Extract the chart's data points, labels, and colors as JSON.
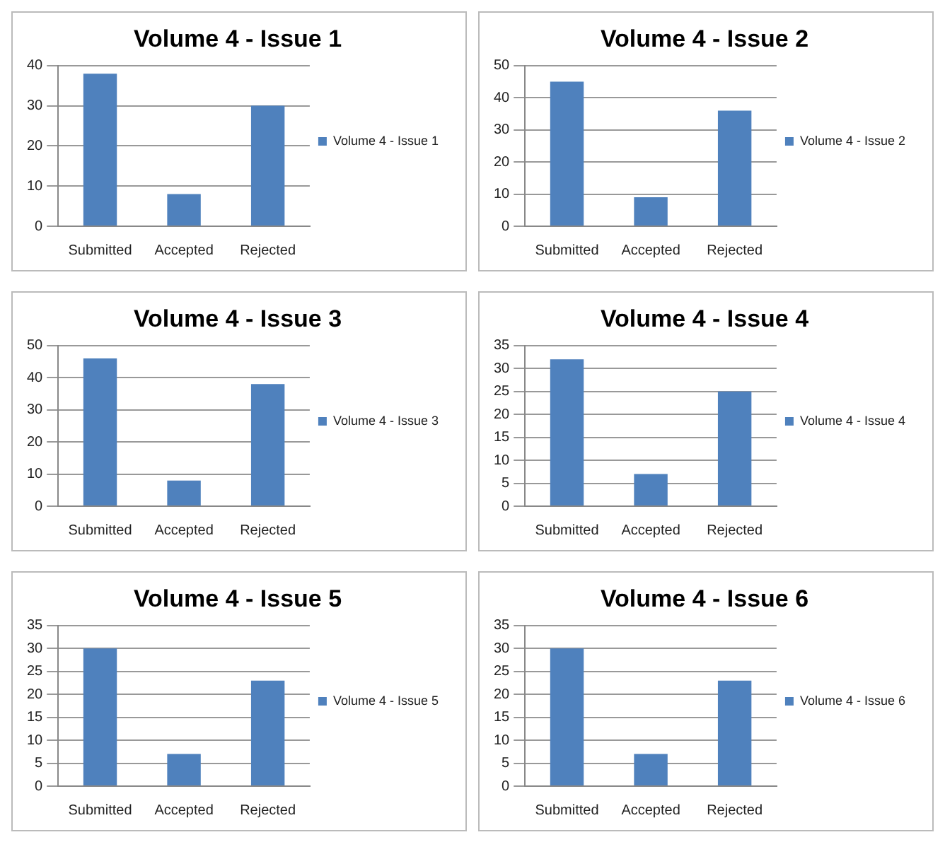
{
  "chart_data": [
    {
      "type": "bar",
      "title": "Volume 4 - Issue 1",
      "categories": [
        "Submitted",
        "Accepted",
        "Rejected"
      ],
      "series": [
        {
          "name": "Volume 4 - Issue 1",
          "color": "#4f81bd",
          "values": [
            38,
            8,
            30
          ]
        }
      ],
      "ylim": [
        0,
        40
      ],
      "yticks": [
        0,
        10,
        20,
        30,
        40
      ],
      "grid": "y",
      "legend": "right"
    },
    {
      "type": "bar",
      "title": "Volume 4 - Issue 2",
      "categories": [
        "Submitted",
        "Accepted",
        "Rejected"
      ],
      "series": [
        {
          "name": "Volume 4 - Issue 2",
          "color": "#4f81bd",
          "values": [
            45,
            9,
            36
          ]
        }
      ],
      "ylim": [
        0,
        50
      ],
      "yticks": [
        0,
        10,
        20,
        30,
        40,
        50
      ],
      "grid": "y",
      "legend": "right"
    },
    {
      "type": "bar",
      "title": "Volume 4 - Issue 3",
      "categories": [
        "Submitted",
        "Accepted",
        "Rejected"
      ],
      "series": [
        {
          "name": "Volume 4 - Issue 3",
          "color": "#4f81bd",
          "values": [
            46,
            8,
            38
          ]
        }
      ],
      "ylim": [
        0,
        50
      ],
      "yticks": [
        0,
        10,
        20,
        30,
        40,
        50
      ],
      "grid": "y",
      "legend": "right"
    },
    {
      "type": "bar",
      "title": "Volume 4 - Issue 4",
      "categories": [
        "Submitted",
        "Accepted",
        "Rejected"
      ],
      "series": [
        {
          "name": "Volume 4 - Issue 4",
          "color": "#4f81bd",
          "values": [
            32,
            7,
            25
          ]
        }
      ],
      "ylim": [
        0,
        35
      ],
      "yticks": [
        0,
        5,
        10,
        15,
        20,
        25,
        30,
        35
      ],
      "grid": "y",
      "legend": "right"
    },
    {
      "type": "bar",
      "title": "Volume 4 - Issue 5",
      "categories": [
        "Submitted",
        "Accepted",
        "Rejected"
      ],
      "series": [
        {
          "name": "Volume 4 - Issue 5",
          "color": "#4f81bd",
          "values": [
            30,
            7,
            23
          ]
        }
      ],
      "ylim": [
        0,
        35
      ],
      "yticks": [
        0,
        5,
        10,
        15,
        20,
        25,
        30,
        35
      ],
      "grid": "y",
      "legend": "right"
    },
    {
      "type": "bar",
      "title": "Volume 4 - Issue 6",
      "categories": [
        "Submitted",
        "Accepted",
        "Rejected"
      ],
      "series": [
        {
          "name": "Volume 4 - Issue 6",
          "color": "#4f81bd",
          "values": [
            30,
            7,
            23
          ]
        }
      ],
      "ylim": [
        0,
        35
      ],
      "yticks": [
        0,
        5,
        10,
        15,
        20,
        25,
        30,
        35
      ],
      "grid": "y",
      "legend": "right"
    }
  ]
}
